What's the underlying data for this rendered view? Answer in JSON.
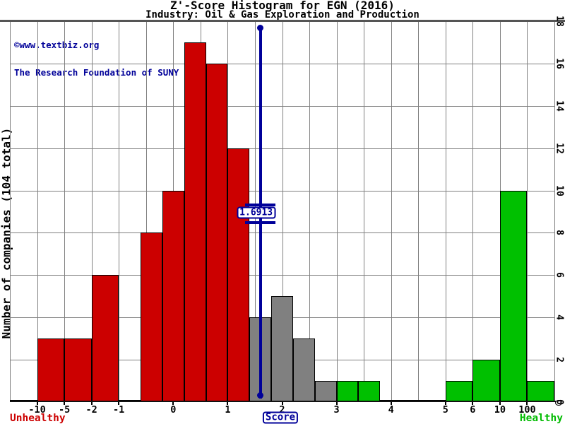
{
  "title": "Z'-Score Histogram for EGN (2016)",
  "subtitle": "Industry: Oil & Gas Exploration and Production",
  "watermark": {
    "line1": "©www.textbiz.org",
    "line2": "The Research Foundation of SUNY"
  },
  "y_axis": {
    "label": "Number of companies (104 total)",
    "max": 18,
    "ticks": [
      0,
      2,
      4,
      6,
      8,
      10,
      12,
      14,
      16,
      18
    ]
  },
  "x_axis": {
    "label": "Score",
    "left_caption": "Unhealthy",
    "right_caption": "Healthy",
    "total_cells": 20,
    "ticks": [
      {
        "label": "-10",
        "cell": 1
      },
      {
        "label": "-5",
        "cell": 2
      },
      {
        "label": "-2",
        "cell": 3
      },
      {
        "label": "-1",
        "cell": 4
      },
      {
        "label": "0",
        "cell": 6
      },
      {
        "label": "1",
        "cell": 8
      },
      {
        "label": "2",
        "cell": 10
      },
      {
        "label": "3",
        "cell": 12
      },
      {
        "label": "4",
        "cell": 14
      },
      {
        "label": "5",
        "cell": 16
      },
      {
        "label": "6",
        "cell": 17
      },
      {
        "label": "10",
        "cell": 18
      },
      {
        "label": "100",
        "cell": 19
      }
    ]
  },
  "marker": {
    "label": "1.6913",
    "score": 1.6913,
    "cell": 9.2
  },
  "colors": {
    "unhealthy": "#cc0000",
    "gray": "#808080",
    "healthy": "#00c000",
    "marker": "#000099",
    "grid": "#808080",
    "axis": "#111111",
    "top_rule": "#555555",
    "unhealthy_text": "#cc0000",
    "healthy_text": "#00bb00"
  },
  "chart_data": {
    "type": "bar",
    "title": "Z'-Score Histogram for EGN (2016)",
    "subtitle": "Industry: Oil & Gas Exploration and Production",
    "xlabel": "Score",
    "ylabel": "Number of companies (104 total)",
    "ylim": [
      0,
      18
    ],
    "grid": true,
    "total_companies": 104,
    "marker_value": 1.6913,
    "bins": [
      {
        "from": "-inf",
        "to": -10,
        "count": 0,
        "zone": "unhealthy",
        "c0": 0,
        "c1": 1
      },
      {
        "from": -10,
        "to": -5,
        "count": 3,
        "zone": "unhealthy",
        "c0": 1,
        "c1": 2
      },
      {
        "from": -5,
        "to": -2,
        "count": 3,
        "zone": "unhealthy",
        "c0": 2,
        "c1": 3
      },
      {
        "from": -2,
        "to": -1,
        "count": 6,
        "zone": "unhealthy",
        "c0": 3,
        "c1": 4
      },
      {
        "from": -1,
        "to": -0.6,
        "count": 0,
        "zone": "unhealthy",
        "c0": 4,
        "c1": 4.8
      },
      {
        "from": -0.6,
        "to": -0.2,
        "count": 8,
        "zone": "unhealthy",
        "c0": 4.8,
        "c1": 5.6
      },
      {
        "from": -0.2,
        "to": 0.2,
        "count": 10,
        "zone": "unhealthy",
        "c0": 5.6,
        "c1": 6.4
      },
      {
        "from": 0.2,
        "to": 0.6,
        "count": 17,
        "zone": "unhealthy",
        "c0": 6.4,
        "c1": 7.2
      },
      {
        "from": 0.6,
        "to": 1,
        "count": 16,
        "zone": "unhealthy",
        "c0": 7.2,
        "c1": 8
      },
      {
        "from": 1,
        "to": 1.4,
        "count": 12,
        "zone": "unhealthy",
        "c0": 8,
        "c1": 8.8
      },
      {
        "from": 1.4,
        "to": 1.8,
        "count": 4,
        "zone": "gray",
        "c0": 8.8,
        "c1": 9.6
      },
      {
        "from": 1.8,
        "to": 2.2,
        "count": 5,
        "zone": "gray",
        "c0": 9.6,
        "c1": 10.4
      },
      {
        "from": 2.2,
        "to": 2.6,
        "count": 3,
        "zone": "gray",
        "c0": 10.4,
        "c1": 11.2
      },
      {
        "from": 2.6,
        "to": 3,
        "count": 1,
        "zone": "gray",
        "c0": 11.2,
        "c1": 12
      },
      {
        "from": 3,
        "to": 3.4,
        "count": 1,
        "zone": "healthy",
        "c0": 12,
        "c1": 12.8
      },
      {
        "from": 3.4,
        "to": 3.8,
        "count": 1,
        "zone": "healthy",
        "c0": 12.8,
        "c1": 13.6
      },
      {
        "from": 3.8,
        "to": 4.2,
        "count": 0,
        "zone": "healthy",
        "c0": 13.6,
        "c1": 14.4
      },
      {
        "from": 4.2,
        "to": 4.6,
        "count": 0,
        "zone": "healthy",
        "c0": 14.4,
        "c1": 15.2
      },
      {
        "from": 4.6,
        "to": 5,
        "count": 0,
        "zone": "healthy",
        "c0": 15.2,
        "c1": 16
      },
      {
        "from": 5,
        "to": 6,
        "count": 1,
        "zone": "healthy",
        "c0": 16,
        "c1": 17
      },
      {
        "from": 6,
        "to": 10,
        "count": 2,
        "zone": "healthy",
        "c0": 17,
        "c1": 18
      },
      {
        "from": 10,
        "to": 100,
        "count": 10,
        "zone": "healthy",
        "c0": 18,
        "c1": 19
      },
      {
        "from": 100,
        "to": "inf",
        "count": 1,
        "zone": "healthy",
        "c0": 19,
        "c1": 20
      }
    ]
  }
}
